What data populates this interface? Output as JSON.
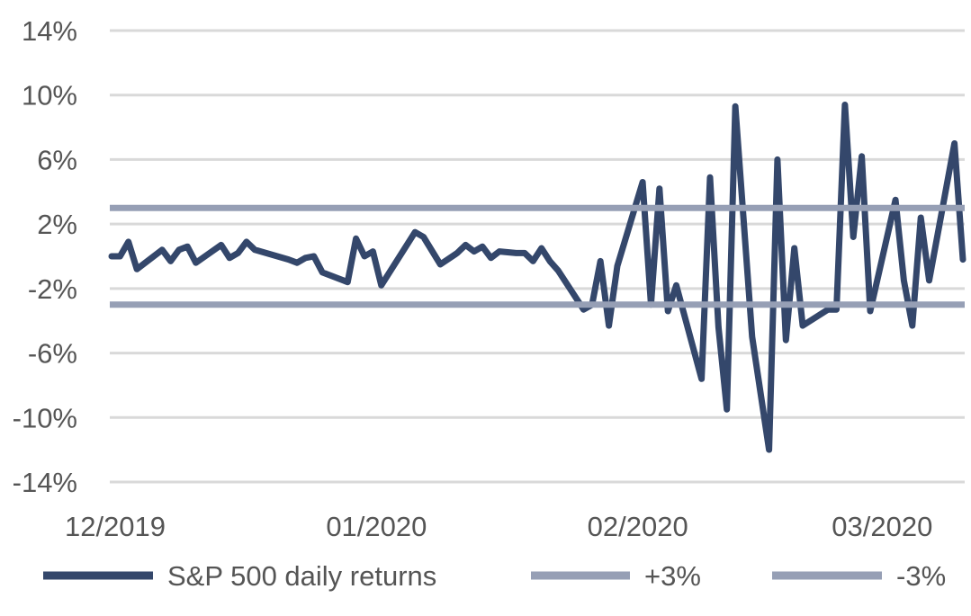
{
  "chart_data": {
    "type": "line",
    "y_ticks": [
      "14%",
      "10%",
      "6%",
      "2%",
      "-2%",
      "-6%",
      "-10%",
      "-14%"
    ],
    "x_ticks": [
      {
        "label": "12/2019",
        "index": 0
      },
      {
        "label": "01/2020",
        "index": 31
      },
      {
        "label": "02/2020",
        "index": 62
      },
      {
        "label": "03/2020",
        "index": 91
      }
    ],
    "ylim": [
      -14,
      14
    ],
    "grid": true,
    "legend_position": "bottom",
    "colors": {
      "returns": "#34476b",
      "thresholds": "#969fb5",
      "grid": "#d9d9d9",
      "text": "#555555"
    },
    "series": [
      {
        "name": "S&P 500 daily returns",
        "color": "#34476b",
        "points": [
          [
            0,
            0.0
          ],
          [
            1,
            0.0
          ],
          [
            2,
            0.9
          ],
          [
            3,
            -0.8
          ],
          [
            6,
            0.4
          ],
          [
            7,
            -0.3
          ],
          [
            8,
            0.4
          ],
          [
            9,
            0.6
          ],
          [
            10,
            -0.4
          ],
          [
            13,
            0.7
          ],
          [
            14,
            -0.1
          ],
          [
            15,
            0.2
          ],
          [
            16,
            0.9
          ],
          [
            17,
            0.4
          ],
          [
            21,
            -0.2
          ],
          [
            22,
            -0.4
          ],
          [
            23,
            -0.1
          ],
          [
            24,
            0.0
          ],
          [
            25,
            -1.0
          ],
          [
            28,
            -1.6
          ],
          [
            29,
            1.1
          ],
          [
            30,
            0.0
          ],
          [
            31,
            0.3
          ],
          [
            32,
            -1.8
          ],
          [
            36,
            1.5
          ],
          [
            37,
            1.2
          ],
          [
            39,
            -0.5
          ],
          [
            41,
            0.2
          ],
          [
            42,
            0.7
          ],
          [
            43,
            0.3
          ],
          [
            44,
            0.6
          ],
          [
            45,
            -0.1
          ],
          [
            46,
            0.3
          ],
          [
            48,
            0.2
          ],
          [
            49,
            0.2
          ],
          [
            50,
            -0.3
          ],
          [
            51,
            0.5
          ],
          [
            52,
            -0.3
          ],
          [
            53,
            -0.9
          ],
          [
            56,
            -3.3
          ],
          [
            57,
            -3.0
          ],
          [
            58,
            -0.3
          ],
          [
            59,
            -4.3
          ],
          [
            60,
            -0.6
          ],
          [
            63,
            4.6
          ],
          [
            64,
            -3.0
          ],
          [
            65,
            4.2
          ],
          [
            66,
            -3.4
          ],
          [
            67,
            -1.8
          ],
          [
            70,
            -7.6
          ],
          [
            71,
            4.9
          ],
          [
            72,
            -4.4
          ],
          [
            73,
            -9.5
          ],
          [
            74,
            9.3
          ],
          [
            76,
            -5.0
          ],
          [
            78,
            -12.0
          ],
          [
            79,
            6.0
          ],
          [
            80,
            -5.2
          ],
          [
            81,
            0.5
          ],
          [
            82,
            -4.3
          ],
          [
            85,
            -3.3
          ],
          [
            86,
            -3.3
          ],
          [
            87,
            9.4
          ],
          [
            88,
            1.2
          ],
          [
            89,
            6.2
          ],
          [
            90,
            -3.4
          ],
          [
            93,
            3.5
          ],
          [
            94,
            -1.5
          ],
          [
            95,
            -4.3
          ],
          [
            96,
            2.4
          ],
          [
            97,
            -1.5
          ],
          [
            100,
            7.0
          ],
          [
            101,
            -0.2
          ]
        ]
      },
      {
        "name": "+3%",
        "color": "#969fb5",
        "constant": 3
      },
      {
        "name": "-3%",
        "color": "#969fb5",
        "constant": -3
      }
    ],
    "x_range": [
      0,
      101
    ]
  }
}
